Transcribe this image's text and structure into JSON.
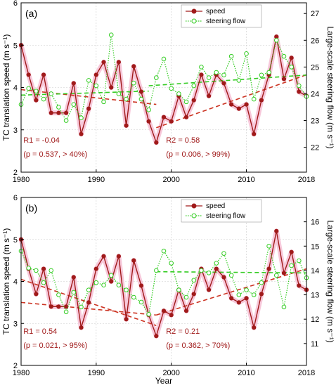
{
  "colors": {
    "speed": "#a01a1a",
    "steering": "#33cc22",
    "shade": "#f7c8da",
    "axis": "#000000",
    "grid": "#cccccc"
  },
  "chart_data": [
    {
      "type": "line",
      "panel_label": "(a)",
      "x": [
        1980,
        1981,
        1982,
        1983,
        1984,
        1985,
        1986,
        1987,
        1988,
        1989,
        1990,
        1991,
        1992,
        1993,
        1994,
        1995,
        1996,
        1997,
        1998,
        1999,
        2000,
        2001,
        2002,
        2003,
        2004,
        2005,
        2006,
        2007,
        2008,
        2009,
        2010,
        2011,
        2012,
        2013,
        2014,
        2015,
        2016,
        2017,
        2018
      ],
      "xlim": [
        1980,
        2018
      ],
      "xticks": [
        "1980",
        "1990",
        "2000",
        "2010",
        "2018"
      ],
      "ylabel": "TC translation speed (m s⁻¹)",
      "ylim": [
        2,
        6
      ],
      "yticks": [
        "2",
        "3",
        "4",
        "5",
        "6"
      ],
      "y2label": "Large-scale steering flow (m s⁻¹)",
      "y2lim": [
        21.07,
        27.4
      ],
      "y2ticks": [
        "22",
        "23",
        "24",
        "25",
        "26",
        "27"
      ],
      "legend": [
        "speed",
        "steering flow"
      ],
      "legend_position": "top-right",
      "series": [
        {
          "name": "speed",
          "axis": "left",
          "values": [
            5.0,
            4.3,
            3.7,
            4.3,
            3.4,
            3.4,
            3.4,
            4.1,
            2.9,
            3.5,
            4.3,
            4.6,
            4.0,
            4.6,
            3.1,
            4.5,
            3.9,
            3.2,
            2.7,
            3.3,
            3.2,
            3.8,
            3.3,
            3.7,
            4.3,
            3.8,
            4.3,
            4.1,
            3.6,
            3.5,
            3.6,
            2.9,
            3.7,
            4.3,
            5.2,
            4.2,
            4.7,
            3.9,
            3.8
          ]
        },
        {
          "name": "steering flow",
          "axis": "right",
          "values": [
            23.6,
            24.2,
            24.1,
            23.8,
            24.0,
            23.5,
            23.0,
            23.6,
            23.1,
            24.5,
            24.3,
            23.7,
            26.2,
            24.0,
            23.8,
            24.4,
            23.8,
            23.4,
            24.6,
            25.3,
            24.2,
            24.0,
            23.7,
            24.3,
            25.0,
            24.6,
            24.8,
            24.7,
            25.4,
            24.5,
            25.5,
            23.8,
            24.7,
            24.8,
            26.0,
            25.4,
            25.0,
            24.3,
            23.9
          ]
        }
      ],
      "trends": [
        {
          "series": "speed",
          "x": [
            1980,
            1998
          ],
          "y": [
            3.95,
            3.6
          ]
        },
        {
          "series": "speed",
          "x": [
            1998,
            2018
          ],
          "y": [
            3.05,
            4.3
          ]
        },
        {
          "series": "steering flow",
          "x": [
            1980,
            1997
          ],
          "y": [
            23.95,
            24.1
          ]
        },
        {
          "series": "steering flow",
          "x": [
            1997,
            2018
          ],
          "y": [
            24.3,
            24.7
          ]
        }
      ],
      "annotations": [
        {
          "line1": "R1 = -0.04",
          "line2": "(p = 0.537, > 40%)"
        },
        {
          "line1": "R2 = 0.58",
          "line2": "(p = 0.006, > 99%)"
        }
      ]
    },
    {
      "type": "line",
      "panel_label": "(b)",
      "xlabel": "Year",
      "x": [
        1980,
        1981,
        1982,
        1983,
        1984,
        1985,
        1986,
        1987,
        1988,
        1989,
        1990,
        1991,
        1992,
        1993,
        1994,
        1995,
        1996,
        1997,
        1998,
        1999,
        2000,
        2001,
        2002,
        2003,
        2004,
        2005,
        2006,
        2007,
        2008,
        2009,
        2010,
        2011,
        2012,
        2013,
        2014,
        2015,
        2016,
        2017,
        2018
      ],
      "xlim": [
        1980,
        2018
      ],
      "xticks": [
        "1980",
        "1990",
        "2000",
        "2010",
        "2018"
      ],
      "ylabel": "TC translation speed (m s⁻¹)",
      "ylim": [
        2,
        6
      ],
      "yticks": [
        "2",
        "3",
        "4",
        "5",
        "6"
      ],
      "y2label": "Large-scale steering flow (m s⁻¹)",
      "y2lim": [
        10.1,
        17.0
      ],
      "y2ticks": [
        "11",
        "12",
        "13",
        "14",
        "15",
        "16"
      ],
      "legend": [
        "speed",
        "steering flow"
      ],
      "legend_position": "top-right",
      "series": [
        {
          "name": "speed",
          "axis": "left",
          "values": [
            5.0,
            4.3,
            3.7,
            4.3,
            3.4,
            3.4,
            3.4,
            4.1,
            2.9,
            3.5,
            4.3,
            4.6,
            4.0,
            4.6,
            3.1,
            4.5,
            3.9,
            3.2,
            2.7,
            3.3,
            3.2,
            3.8,
            3.3,
            3.7,
            4.3,
            3.8,
            4.3,
            4.1,
            3.6,
            3.5,
            3.6,
            2.9,
            3.7,
            4.3,
            5.2,
            4.2,
            4.7,
            3.9,
            3.8
          ]
        },
        {
          "name": "steering flow",
          "axis": "right",
          "values": [
            14.8,
            14.1,
            14.0,
            13.5,
            14.0,
            13.0,
            12.3,
            13.1,
            12.5,
            13.2,
            13.5,
            13.4,
            13.8,
            13.4,
            13.2,
            12.9,
            12.7,
            12.2,
            14.0,
            14.8,
            14.3,
            13.2,
            12.9,
            13.6,
            14.0,
            13.9,
            14.3,
            14.7,
            13.8,
            13.0,
            13.2,
            13.0,
            13.5,
            15.0,
            13.8,
            12.5,
            14.2,
            14.4,
            13.7
          ]
        }
      ],
      "trends": [
        {
          "series": "speed",
          "x": [
            1980,
            1998
          ],
          "y": [
            3.5,
            3.2
          ]
        },
        {
          "series": "speed",
          "x": [
            1980,
            1998
          ],
          "y": [
            4.05,
            2.95
          ]
        },
        {
          "series": "speed",
          "x": [
            1998,
            2018
          ],
          "y": [
            3.2,
            4.3
          ]
        },
        {
          "series": "steering flow",
          "x": [
            1998,
            2018
          ],
          "y": [
            13.95,
            13.9
          ]
        }
      ],
      "annotations": [
        {
          "line1": "R1 = 0.54",
          "line2": "(p = 0.021, > 95%)"
        },
        {
          "line1": "R2 = 0.21",
          "line2": "(p = 0.362, > 70%)"
        }
      ]
    }
  ]
}
